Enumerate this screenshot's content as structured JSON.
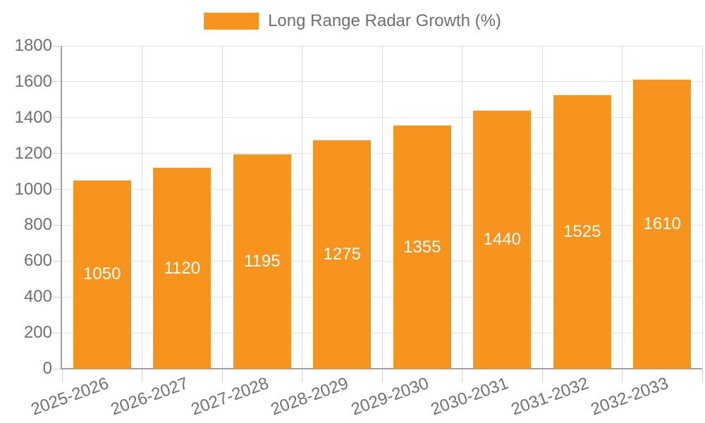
{
  "legend": {
    "label": "Long Range Radar Growth (%)",
    "position": "top-center"
  },
  "chart_data": {
    "type": "bar",
    "title": "",
    "xlabel": "",
    "ylabel": "",
    "categories": [
      "2025-2026",
      "2026-2027",
      "2027-2028",
      "2028-2029",
      "2029-2030",
      "2030-2031",
      "2031-2032",
      "2032-2033"
    ],
    "series": [
      {
        "name": "Long Range Radar Growth (%)",
        "values": [
          1050,
          1120,
          1195,
          1275,
          1355,
          1440,
          1525,
          1610
        ]
      }
    ],
    "bar_value_labels": [
      "1050",
      "1120",
      "1195",
      "1275",
      "1355",
      "1440",
      "1525",
      "1610"
    ],
    "bar_value_label_position": "inside-center",
    "ylim": [
      0,
      1800
    ],
    "ytick_step": 200,
    "yticks": [
      0,
      200,
      400,
      600,
      800,
      1000,
      1200,
      1400,
      1600,
      1800
    ],
    "grid": true,
    "x_label_rotation_deg": -20,
    "legend_position": "top-center"
  },
  "colors": {
    "bar": "#F7941E",
    "bar_label": "#FFFFFF",
    "axis_text": "#707070",
    "legend_text": "#707070",
    "h_grid_line": "#E3E3E3",
    "v_grid_line": "#DCDCDC",
    "tick_mark": "#CFCFCF",
    "axis_line": "#A0A0A0",
    "background": "#FFFFFF"
  }
}
